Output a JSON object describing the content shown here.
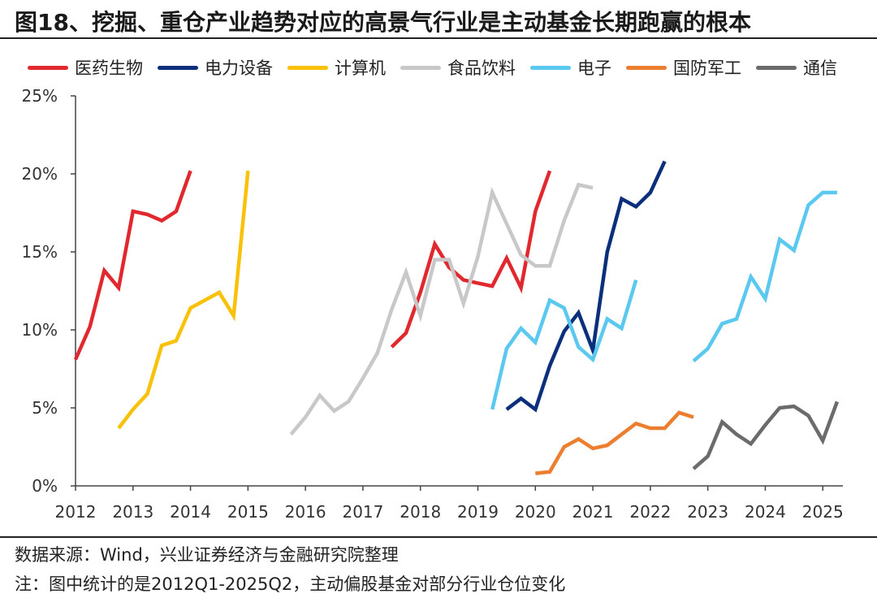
{
  "title": "图18、挖掘、重仓产业趋势对应的高景气行业是主动基金长期跑赢的根本",
  "source": "数据来源：Wind，兴业证券经济与金融研究院整理",
  "note": "注：图中统计的是2012Q1-2025Q2，主动偏股基金对部分行业仓位变化",
  "chart_data": {
    "type": "line",
    "x_unit": "year",
    "xlim": [
      2012,
      2025.35
    ],
    "ylim": [
      0,
      25
    ],
    "x_ticks": [
      2012,
      2013,
      2014,
      2015,
      2016,
      2017,
      2018,
      2019,
      2020,
      2021,
      2022,
      2023,
      2024,
      2025
    ],
    "x_tick_labels": [
      "2012",
      "2013",
      "2014",
      "2015",
      "2016",
      "2017",
      "2018",
      "2019",
      "2020",
      "2021",
      "2022",
      "2023",
      "2024",
      "2025"
    ],
    "y_ticks": [
      0,
      5,
      10,
      15,
      20,
      25
    ],
    "y_tick_labels": [
      "0%",
      "5%",
      "10%",
      "15%",
      "20%",
      "25%"
    ],
    "legend_position": "top",
    "grid": false,
    "series": [
      {
        "name": "医药生物",
        "color": "#e0282e",
        "points": [
          [
            2012.0,
            8.1
          ],
          [
            2012.25,
            10.2
          ],
          [
            2012.5,
            13.8
          ],
          [
            2012.75,
            12.7
          ],
          [
            2013.0,
            17.6
          ],
          [
            2013.25,
            17.4
          ],
          [
            2013.5,
            17.0
          ],
          [
            2013.75,
            17.6
          ],
          [
            2014.0,
            20.2
          ],
          [
            2017.5,
            8.9
          ],
          [
            2017.75,
            9.8
          ],
          [
            2018.0,
            12.4
          ],
          [
            2018.25,
            15.5
          ],
          [
            2018.5,
            14.0
          ],
          [
            2018.75,
            13.2
          ],
          [
            2019.0,
            13.0
          ],
          [
            2019.25,
            12.8
          ],
          [
            2019.5,
            14.6
          ],
          [
            2019.75,
            12.7
          ],
          [
            2020.0,
            17.6
          ],
          [
            2020.25,
            20.2
          ]
        ]
      },
      {
        "name": "电力设备",
        "color": "#0c2f7c",
        "points": [
          [
            2019.5,
            4.9
          ],
          [
            2019.75,
            5.6
          ],
          [
            2020.0,
            4.9
          ],
          [
            2020.25,
            7.7
          ],
          [
            2020.5,
            9.9
          ],
          [
            2020.75,
            11.1
          ],
          [
            2021.0,
            8.7
          ],
          [
            2021.25,
            15.0
          ],
          [
            2021.5,
            18.4
          ],
          [
            2021.75,
            17.9
          ],
          [
            2022.0,
            18.8
          ],
          [
            2022.25,
            20.8
          ]
        ]
      },
      {
        "name": "计算机",
        "color": "#f9c10a",
        "points": [
          [
            2012.75,
            3.7
          ],
          [
            2013.0,
            4.9
          ],
          [
            2013.25,
            5.9
          ],
          [
            2013.5,
            9.0
          ],
          [
            2013.75,
            9.3
          ],
          [
            2014.0,
            11.4
          ],
          [
            2014.25,
            11.9
          ],
          [
            2014.5,
            12.4
          ],
          [
            2014.75,
            10.9
          ],
          [
            2015.0,
            20.2
          ]
        ]
      },
      {
        "name": "食品饮料",
        "color": "#c8c8c8",
        "points": [
          [
            2015.75,
            3.3
          ],
          [
            2016.0,
            4.4
          ],
          [
            2016.25,
            5.8
          ],
          [
            2016.5,
            4.8
          ],
          [
            2016.75,
            5.4
          ],
          [
            2017.0,
            6.9
          ],
          [
            2017.25,
            8.5
          ],
          [
            2017.5,
            11.3
          ],
          [
            2017.75,
            13.7
          ],
          [
            2018.0,
            10.9
          ],
          [
            2018.25,
            14.5
          ],
          [
            2018.5,
            14.5
          ],
          [
            2018.75,
            11.7
          ],
          [
            2019.0,
            14.7
          ],
          [
            2019.25,
            18.8
          ],
          [
            2019.5,
            16.8
          ],
          [
            2019.75,
            14.8
          ],
          [
            2020.0,
            14.1
          ],
          [
            2020.25,
            14.1
          ],
          [
            2020.5,
            17.0
          ],
          [
            2020.75,
            19.3
          ],
          [
            2021.0,
            19.1
          ]
        ]
      },
      {
        "name": "电子",
        "color": "#5ac8ef",
        "points": [
          [
            2019.25,
            4.9
          ],
          [
            2019.5,
            8.8
          ],
          [
            2019.75,
            10.1
          ],
          [
            2020.0,
            9.2
          ],
          [
            2020.25,
            11.9
          ],
          [
            2020.5,
            11.4
          ],
          [
            2020.75,
            8.9
          ],
          [
            2021.0,
            8.1
          ],
          [
            2021.25,
            10.7
          ],
          [
            2021.5,
            10.1
          ],
          [
            2021.75,
            13.2
          ],
          [
            2022.75,
            8.0
          ],
          [
            2023.0,
            8.8
          ],
          [
            2023.25,
            10.4
          ],
          [
            2023.5,
            10.7
          ],
          [
            2023.75,
            13.4
          ],
          [
            2024.0,
            12.0
          ],
          [
            2024.25,
            15.8
          ],
          [
            2024.5,
            15.1
          ],
          [
            2024.75,
            18.0
          ],
          [
            2025.0,
            18.8
          ],
          [
            2025.25,
            18.8
          ]
        ]
      },
      {
        "name": "国防军工",
        "color": "#ec7e30",
        "points": [
          [
            2020.0,
            0.8
          ],
          [
            2020.25,
            0.9
          ],
          [
            2020.5,
            2.5
          ],
          [
            2020.75,
            3.0
          ],
          [
            2021.0,
            2.4
          ],
          [
            2021.25,
            2.6
          ],
          [
            2021.5,
            3.3
          ],
          [
            2021.75,
            4.0
          ],
          [
            2022.0,
            3.7
          ],
          [
            2022.25,
            3.7
          ],
          [
            2022.5,
            4.7
          ],
          [
            2022.75,
            4.4
          ]
        ]
      },
      {
        "name": "通信",
        "color": "#6b6b6b",
        "points": [
          [
            2022.75,
            1.1
          ],
          [
            2023.0,
            1.9
          ],
          [
            2023.25,
            4.1
          ],
          [
            2023.5,
            3.3
          ],
          [
            2023.75,
            2.7
          ],
          [
            2024.0,
            3.9
          ],
          [
            2024.25,
            5.0
          ],
          [
            2024.5,
            5.1
          ],
          [
            2024.75,
            4.5
          ],
          [
            2025.0,
            2.9
          ],
          [
            2025.25,
            5.4
          ]
        ]
      }
    ]
  }
}
